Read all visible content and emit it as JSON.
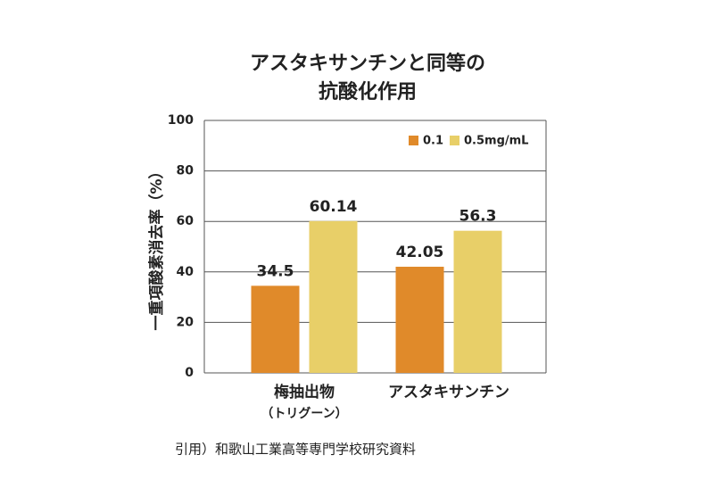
{
  "chart_data": {
    "type": "bar",
    "title": "アスタキサンチンと同等の",
    "subtitle": "抗酸化作用",
    "y_label": "一重項酸素消去率（%）",
    "categories": [
      "梅抽出物",
      "アスタキサンチン"
    ],
    "category_sublabels": [
      "（トリグーン）",
      null
    ],
    "series": [
      {
        "name": "0.1",
        "color": "#e08a2a",
        "values": [
          34.5,
          42.05
        ]
      },
      {
        "name": "0.5mg/mL",
        "color": "#e8cf68",
        "values": [
          60.14,
          56.3
        ]
      }
    ],
    "ylim": [
      0,
      100
    ],
    "yticks": [
      0,
      20,
      40,
      60,
      80,
      100
    ],
    "grid": true,
    "legend": "top-right",
    "source": "引用）和歌山工業高等専門学校研究資料"
  }
}
